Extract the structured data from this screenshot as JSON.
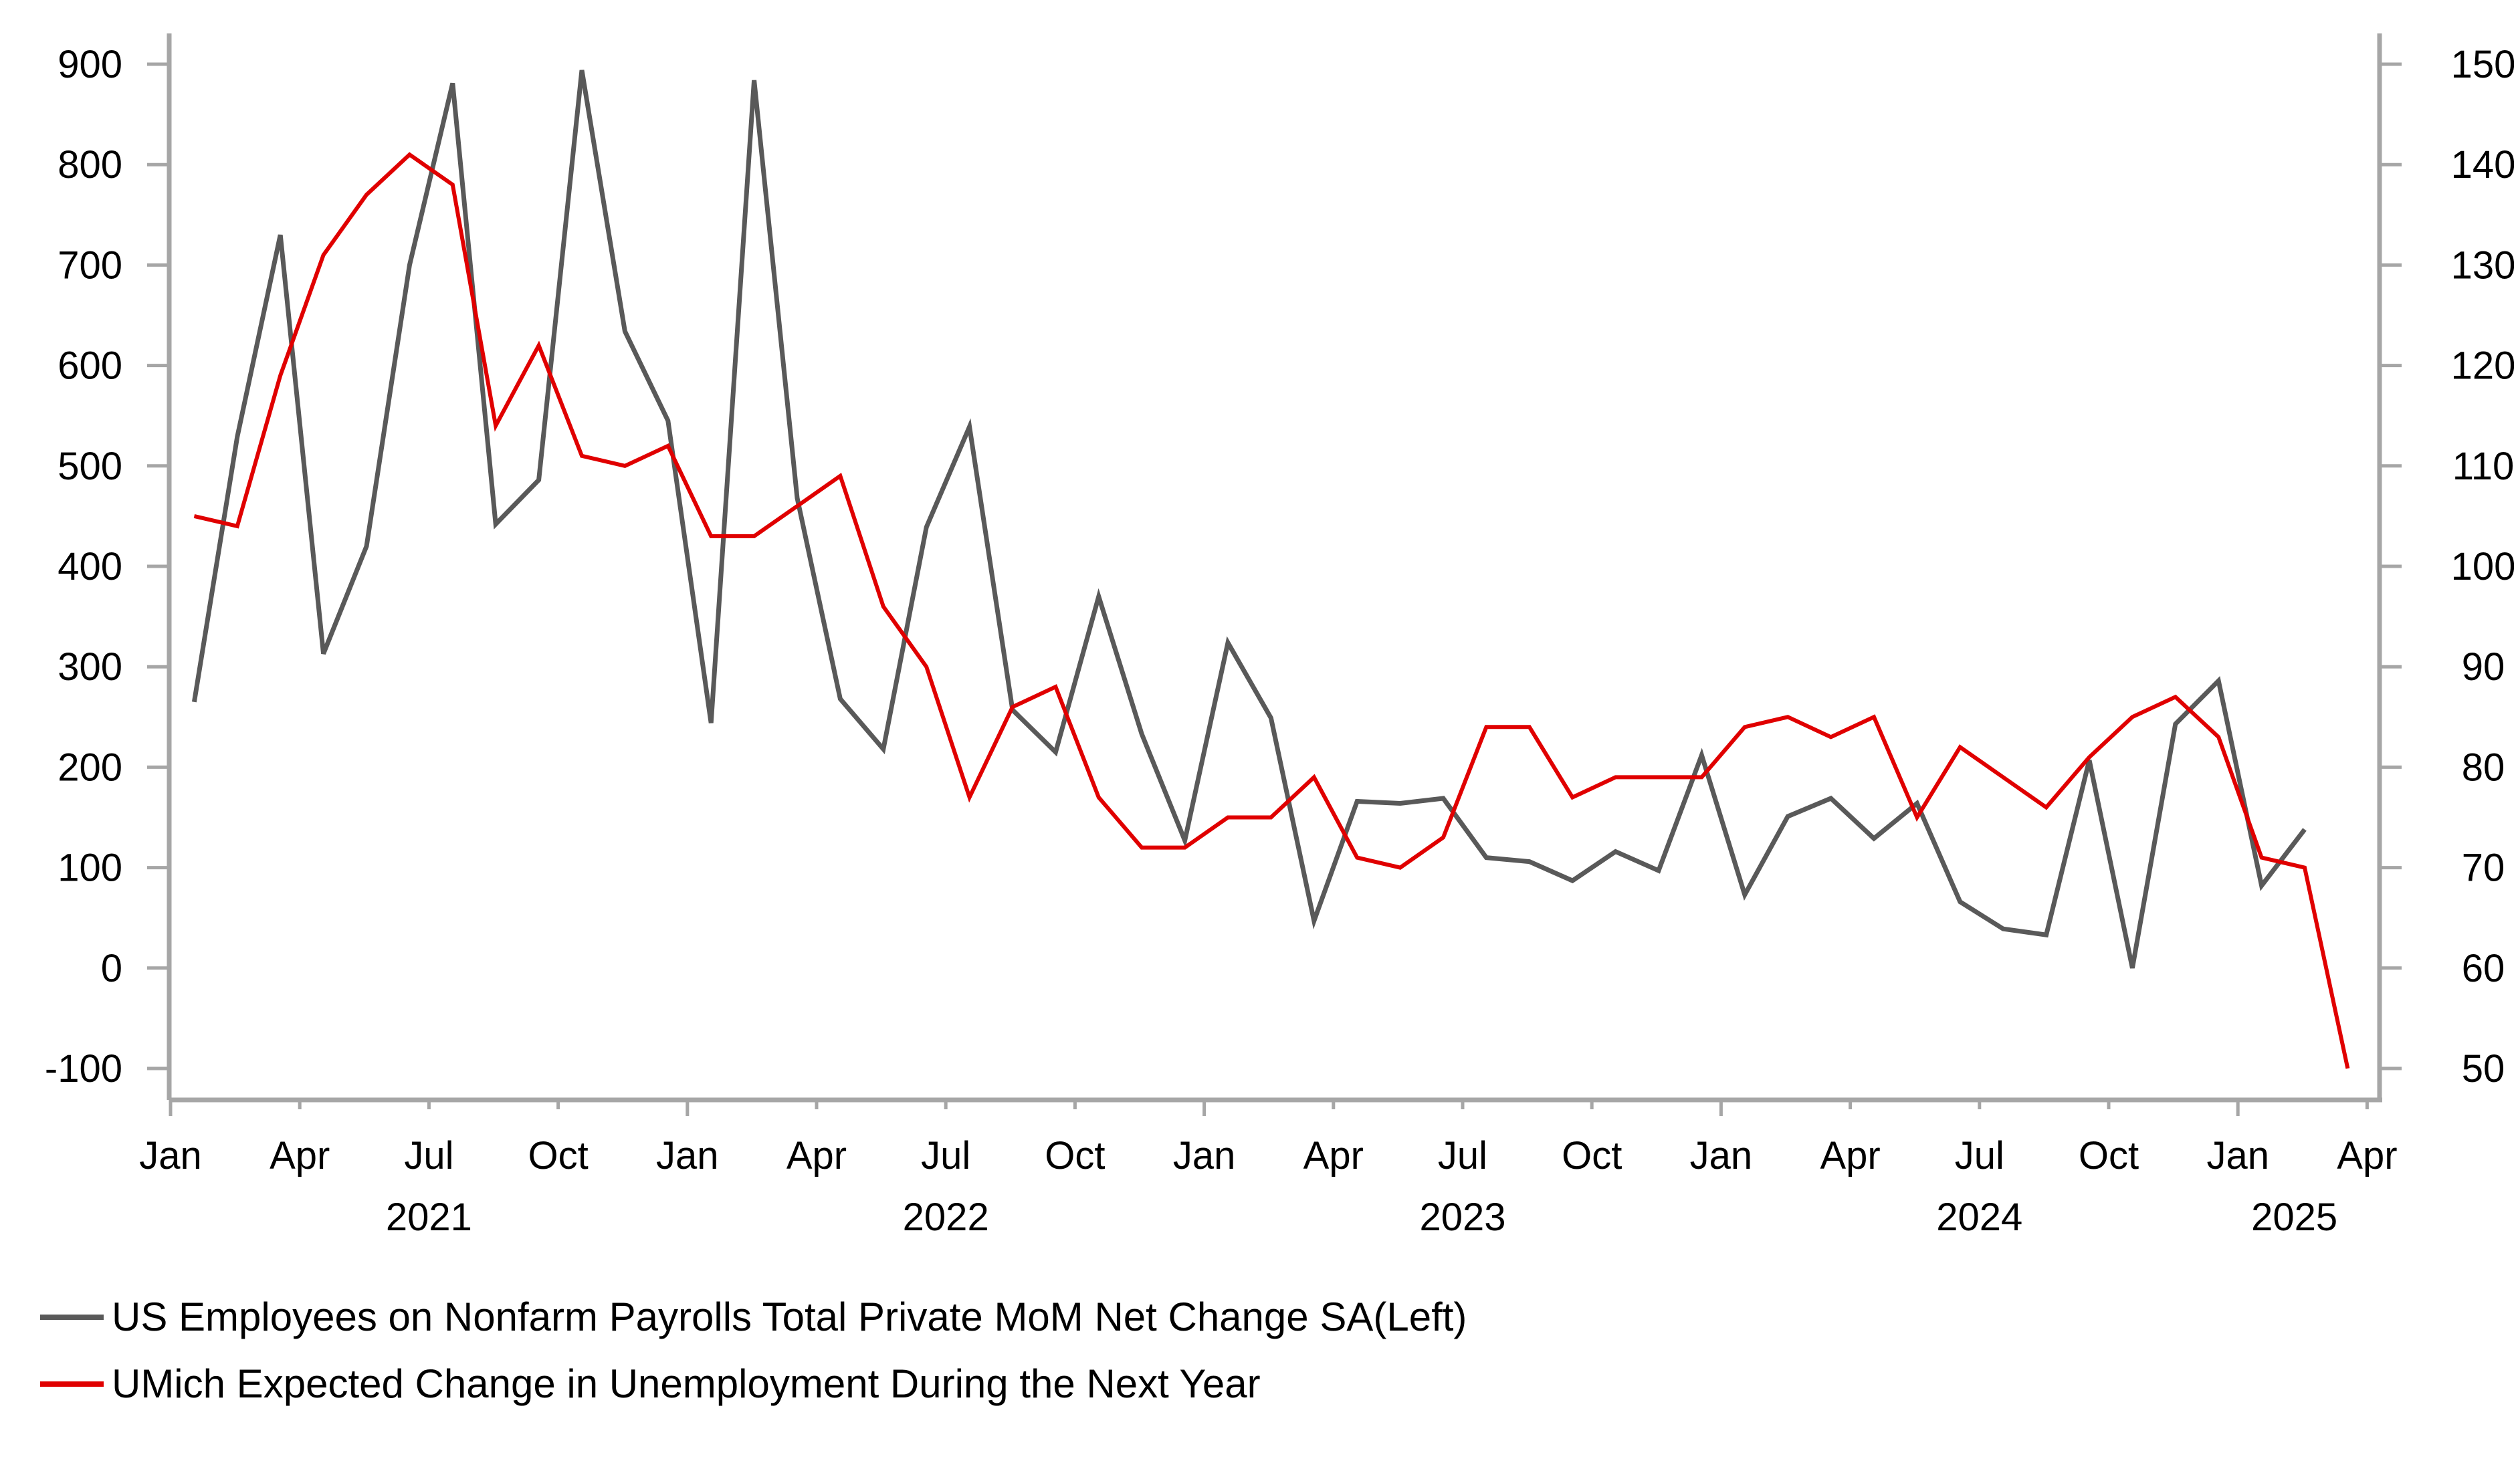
{
  "chart_data": {
    "type": "line",
    "title": "",
    "x": [
      "2021-01",
      "2021-02",
      "2021-03",
      "2021-04",
      "2021-05",
      "2021-06",
      "2021-07",
      "2021-08",
      "2021-09",
      "2021-10",
      "2021-11",
      "2021-12",
      "2022-01",
      "2022-02",
      "2022-03",
      "2022-04",
      "2022-05",
      "2022-06",
      "2022-07",
      "2022-08",
      "2022-09",
      "2022-10",
      "2022-11",
      "2022-12",
      "2023-01",
      "2023-02",
      "2023-03",
      "2023-04",
      "2023-05",
      "2023-06",
      "2023-07",
      "2023-08",
      "2023-09",
      "2023-10",
      "2023-11",
      "2023-12",
      "2024-01",
      "2024-02",
      "2024-03",
      "2024-04",
      "2024-05",
      "2024-06",
      "2024-07",
      "2024-08",
      "2024-09",
      "2024-10",
      "2024-11",
      "2024-12",
      "2025-01",
      "2025-02",
      "2025-03"
    ],
    "series": [
      {
        "name": "US Employees on Nonfarm Payrolls Total Private MoM Net Change SA(Left)",
        "axis": "left",
        "color": "#595959",
        "values": [
          265,
          529,
          730,
          313,
          420,
          700,
          881,
          442,
          486,
          894,
          634,
          545,
          244,
          884,
          468,
          268,
          218,
          439,
          539,
          257,
          215,
          370,
          233,
          127,
          324,
          249,
          47,
          166,
          164,
          169,
          110,
          106,
          87,
          116,
          97,
          212,
          73,
          151,
          169,
          129,
          164,
          66,
          39,
          33,
          207,
          0,
          243,
          286,
          82,
          138,
          null
        ]
      },
      {
        "name": "UMich Expected Change in Unemployment During the Next Year",
        "axis": "right",
        "color": "#e00000",
        "values": [
          105,
          104,
          119,
          131,
          137,
          141,
          138,
          114,
          122,
          111,
          110,
          112,
          103,
          103,
          106,
          109,
          96,
          90,
          77,
          86,
          88,
          77,
          72,
          72,
          75,
          75,
          79,
          71,
          70,
          73,
          84,
          84,
          77,
          79,
          79,
          79,
          84,
          85,
          83,
          85,
          75,
          82,
          79,
          76,
          81,
          85,
          87,
          83,
          71,
          70,
          50
        ]
      }
    ],
    "y_left": {
      "ylim": [
        -100,
        900
      ],
      "ticks": [
        900,
        800,
        700,
        600,
        500,
        400,
        300,
        200,
        100,
        0,
        -100
      ],
      "tick_labels": [
        "900",
        "800",
        "700",
        "600",
        "500",
        "400",
        "300",
        "200",
        "100",
        "0",
        "-100"
      ]
    },
    "y_right": {
      "ylim": [
        50,
        150
      ],
      "ticks": [
        150,
        140,
        130,
        120,
        110,
        100,
        90,
        80,
        70,
        60,
        50
      ],
      "tick_labels": [
        "150",
        "140",
        "130",
        "120",
        "110",
        "100",
        "90",
        "80",
        "70",
        "60",
        "50"
      ]
    },
    "x_axis": {
      "range": [
        "2021-01",
        "2025-04"
      ],
      "month_ticks": [
        {
          "date": "2021-01",
          "label": "Jan"
        },
        {
          "date": "2021-04",
          "label": "Apr"
        },
        {
          "date": "2021-07",
          "label": "Jul"
        },
        {
          "date": "2021-10",
          "label": "Oct"
        },
        {
          "date": "2022-01",
          "label": "Jan"
        },
        {
          "date": "2022-04",
          "label": "Apr"
        },
        {
          "date": "2022-07",
          "label": "Jul"
        },
        {
          "date": "2022-10",
          "label": "Oct"
        },
        {
          "date": "2023-01",
          "label": "Jan"
        },
        {
          "date": "2023-04",
          "label": "Apr"
        },
        {
          "date": "2023-07",
          "label": "Jul"
        },
        {
          "date": "2023-10",
          "label": "Oct"
        },
        {
          "date": "2024-01",
          "label": "Jan"
        },
        {
          "date": "2024-04",
          "label": "Apr"
        },
        {
          "date": "2024-07",
          "label": "Jul"
        },
        {
          "date": "2024-10",
          "label": "Oct"
        },
        {
          "date": "2025-01",
          "label": "Jan"
        },
        {
          "date": "2025-04",
          "label": "Apr"
        }
      ],
      "year_labels": [
        {
          "year": "2021",
          "center": "2021-07"
        },
        {
          "year": "2022",
          "center": "2022-07"
        },
        {
          "year": "2023",
          "center": "2023-07"
        },
        {
          "year": "2024",
          "center": "2024-07"
        },
        {
          "year": "2025",
          "center": "2025-02"
        }
      ]
    },
    "grid": false,
    "legend_position": "bottom-left"
  },
  "legend": {
    "items": [
      {
        "label": "US Employees on Nonfarm Payrolls Total Private MoM Net Change SA(Left)",
        "color": "#595959"
      },
      {
        "label": "UMich Expected Change in Unemployment During the Next Year",
        "color": "#e00000"
      }
    ]
  },
  "colors": {
    "axis": "#a6a6a6"
  }
}
